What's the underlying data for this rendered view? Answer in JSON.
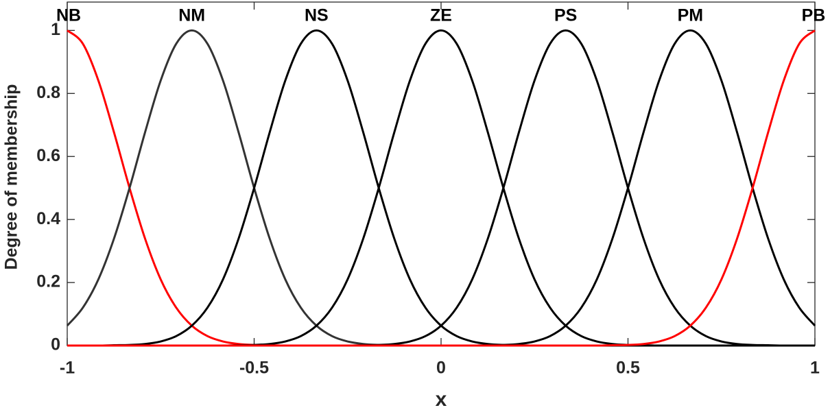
{
  "chart_data": {
    "type": "line",
    "xlabel": "x",
    "ylabel": "Degree of membership",
    "x": [
      -1,
      -0.9583,
      -0.9167,
      -0.875,
      -0.8333,
      -0.7917,
      -0.75,
      -0.7083,
      -0.6667,
      -0.625,
      -0.5833,
      -0.5417,
      -0.5,
      -0.4583,
      -0.4167,
      -0.375,
      -0.3333,
      -0.2917,
      -0.25,
      -0.2083,
      -0.1667,
      -0.125,
      -0.0833,
      -0.0417,
      0,
      0.0417,
      0.0833,
      0.125,
      0.1667,
      0.2083,
      0.25,
      0.2917,
      0.3333,
      0.375,
      0.4167,
      0.4583,
      0.5,
      0.5417,
      0.5833,
      0.625,
      0.6667,
      0.7083,
      0.75,
      0.7917,
      0.8333,
      0.875,
      0.9167,
      0.9583,
      1
    ],
    "series": [
      {
        "name": "NB",
        "color": "#ff0000",
        "values": [
          1,
          0.958,
          0.841,
          0.677,
          0.5,
          0.339,
          0.21,
          0.12,
          0.063,
          0.03,
          0.013,
          0.005,
          0.002,
          0.001,
          0,
          0,
          0,
          0,
          0,
          0,
          0,
          0,
          0,
          0,
          0,
          0,
          0,
          0,
          0,
          0,
          0,
          0,
          0,
          0,
          0,
          0,
          0,
          0,
          0,
          0,
          0,
          0,
          0,
          0,
          0,
          0,
          0,
          0,
          0
        ]
      },
      {
        "name": "NM",
        "color": "#333333",
        "values": [
          0.063,
          0.12,
          0.21,
          0.339,
          0.5,
          0.677,
          0.841,
          0.958,
          1,
          0.958,
          0.841,
          0.677,
          0.5,
          0.339,
          0.21,
          0.12,
          0.063,
          0.03,
          0.013,
          0.005,
          0.002,
          0.001,
          0,
          0,
          0,
          0,
          0,
          0,
          0,
          0,
          0,
          0,
          0,
          0,
          0,
          0,
          0,
          0,
          0,
          0,
          0,
          0,
          0,
          0,
          0,
          0,
          0,
          0,
          0
        ]
      },
      {
        "name": "NS",
        "color": "#000000",
        "values": [
          0,
          0,
          0,
          0.001,
          0.002,
          0.005,
          0.013,
          0.03,
          0.063,
          0.12,
          0.21,
          0.339,
          0.5,
          0.677,
          0.841,
          0.958,
          1,
          0.958,
          0.841,
          0.677,
          0.5,
          0.339,
          0.21,
          0.12,
          0.063,
          0.03,
          0.013,
          0.005,
          0.002,
          0.001,
          0,
          0,
          0,
          0,
          0,
          0,
          0,
          0,
          0,
          0,
          0,
          0,
          0,
          0,
          0,
          0,
          0,
          0,
          0
        ]
      },
      {
        "name": "ZE",
        "color": "#000000",
        "values": [
          0,
          0,
          0,
          0,
          0,
          0,
          0,
          0,
          0,
          0,
          0,
          0.001,
          0.002,
          0.005,
          0.013,
          0.03,
          0.063,
          0.12,
          0.21,
          0.339,
          0.5,
          0.677,
          0.841,
          0.958,
          1,
          0.958,
          0.841,
          0.677,
          0.5,
          0.339,
          0.21,
          0.12,
          0.063,
          0.03,
          0.013,
          0.005,
          0.002,
          0.001,
          0,
          0,
          0,
          0,
          0,
          0,
          0,
          0,
          0,
          0,
          0
        ]
      },
      {
        "name": "PS",
        "color": "#000000",
        "values": [
          0,
          0,
          0,
          0,
          0,
          0,
          0,
          0,
          0,
          0,
          0,
          0,
          0,
          0,
          0,
          0,
          0,
          0,
          0,
          0.001,
          0.002,
          0.005,
          0.013,
          0.03,
          0.063,
          0.12,
          0.21,
          0.339,
          0.5,
          0.677,
          0.841,
          0.958,
          1,
          0.958,
          0.841,
          0.677,
          0.5,
          0.339,
          0.21,
          0.12,
          0.063,
          0.03,
          0.013,
          0.005,
          0.002,
          0.001,
          0,
          0,
          0
        ]
      },
      {
        "name": "PM",
        "color": "#000000",
        "values": [
          0,
          0,
          0,
          0,
          0,
          0,
          0,
          0,
          0,
          0,
          0,
          0,
          0,
          0,
          0,
          0,
          0,
          0,
          0,
          0,
          0,
          0,
          0,
          0,
          0,
          0,
          0,
          0.001,
          0.002,
          0.005,
          0.013,
          0.03,
          0.063,
          0.12,
          0.21,
          0.339,
          0.5,
          0.677,
          0.841,
          0.958,
          1,
          0.958,
          0.841,
          0.677,
          0.5,
          0.339,
          0.21,
          0.12,
          0.063
        ]
      },
      {
        "name": "PB",
        "color": "#ff0000",
        "values": [
          0,
          0,
          0,
          0,
          0,
          0,
          0,
          0,
          0,
          0,
          0,
          0,
          0,
          0,
          0,
          0,
          0,
          0,
          0,
          0,
          0,
          0,
          0,
          0,
          0,
          0,
          0,
          0,
          0,
          0,
          0,
          0,
          0,
          0,
          0,
          0.001,
          0.002,
          0.005,
          0.013,
          0.03,
          0.063,
          0.12,
          0.21,
          0.339,
          0.5,
          0.677,
          0.841,
          0.958,
          1
        ]
      }
    ],
    "xlim": [
      -1,
      1
    ],
    "xticks": [
      -1,
      -0.5,
      0,
      0.5,
      1
    ],
    "ylim": [
      0,
      1.09
    ],
    "yticks": [
      0,
      0.2,
      0.4,
      0.6,
      0.8,
      1
    ]
  }
}
